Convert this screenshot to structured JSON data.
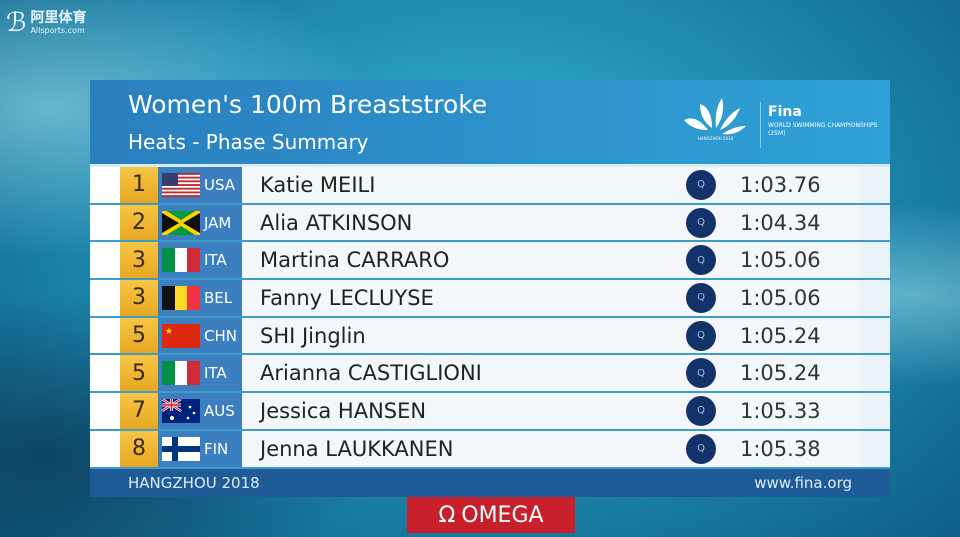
{
  "broadcaster": {
    "name_cn": "阿里体育",
    "name_en": "Allsports.com"
  },
  "header": {
    "title": "Women's 100m Breaststroke",
    "subtitle": "Heats - Phase Summary",
    "event_logo_text": "HANGZHOU 2018",
    "fina_logo": "Fina",
    "fina_sub": "WORLD SWIMMING CHAMPIONSHIPS (25M)"
  },
  "results": [
    {
      "rank": "1",
      "nation": "USA",
      "flag": "usa",
      "name": "Katie MEILI",
      "qualifier": "Q",
      "time": "1:03.76"
    },
    {
      "rank": "2",
      "nation": "JAM",
      "flag": "jam",
      "name": "Alia ATKINSON",
      "qualifier": "Q",
      "time": "1:04.34"
    },
    {
      "rank": "3",
      "nation": "ITA",
      "flag": "ita",
      "name": "Martina CARRARO",
      "qualifier": "Q",
      "time": "1:05.06"
    },
    {
      "rank": "3",
      "nation": "BEL",
      "flag": "bel",
      "name": "Fanny LECLUYSE",
      "qualifier": "Q",
      "time": "1:05.06"
    },
    {
      "rank": "5",
      "nation": "CHN",
      "flag": "chn",
      "name": "SHI Jinglin",
      "qualifier": "Q",
      "time": "1:05.24"
    },
    {
      "rank": "5",
      "nation": "ITA",
      "flag": "ita",
      "name": "Arianna CASTIGLIONI",
      "qualifier": "Q",
      "time": "1:05.24"
    },
    {
      "rank": "7",
      "nation": "AUS",
      "flag": "aus",
      "name": "Jessica HANSEN",
      "qualifier": "Q",
      "time": "1:05.33"
    },
    {
      "rank": "8",
      "nation": "FIN",
      "flag": "fin",
      "name": "Jenna LAUKKANEN",
      "qualifier": "Q",
      "time": "1:05.38"
    }
  ],
  "footer": {
    "location": "HANGZHOU 2018",
    "url": "www.fina.org"
  },
  "sponsor": {
    "symbol": "Ω",
    "name": "OMEGA"
  },
  "colors": {
    "header": "#2a8fcc",
    "rank": "#f0b833",
    "nation": "#3b7fc0",
    "qualifier": "#14326a",
    "footer": "#1f5c97",
    "sponsor": "#c8202a"
  }
}
